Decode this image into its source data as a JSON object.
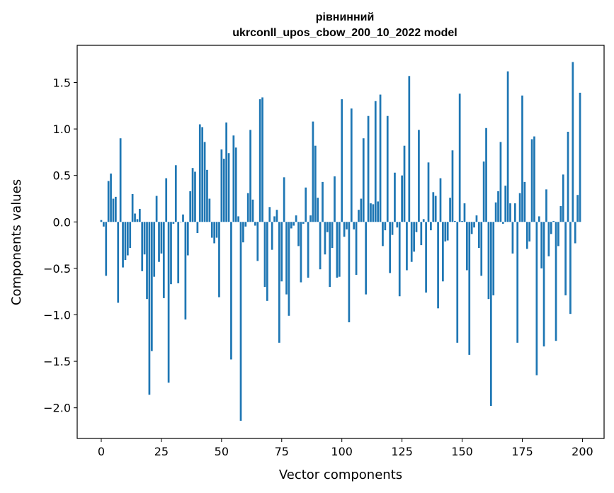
{
  "chart_data": {
    "type": "bar",
    "title": "рівнинний",
    "subtitle": "ukrconll_upos_cbow_200_10_2022 model",
    "xlabel": "Vector components",
    "ylabel": "Components values",
    "xlim": [
      -10,
      209
    ],
    "ylim": [
      -2.33,
      1.9
    ],
    "xticks": [
      0,
      25,
      50,
      75,
      100,
      125,
      150,
      175,
      200
    ],
    "yticks": [
      -2.0,
      -1.5,
      -1.0,
      -0.5,
      0.0,
      0.5,
      1.0,
      1.5
    ],
    "ytick_labels": [
      "−2.0",
      "−1.5",
      "−1.0",
      "−0.5",
      "0.0",
      "0.5",
      "1.0",
      "1.5"
    ],
    "bar_color": "#1f77b4",
    "grid": false,
    "values": [
      0.02,
      -0.05,
      -0.58,
      0.44,
      0.52,
      0.25,
      0.27,
      -0.87,
      0.9,
      -0.49,
      -0.41,
      -0.36,
      -0.28,
      0.3,
      0.09,
      0.03,
      0.14,
      -0.53,
      -0.35,
      -0.83,
      -1.86,
      -1.39,
      -0.59,
      0.28,
      -0.43,
      -0.34,
      -0.82,
      0.47,
      -1.73,
      -0.67,
      -0.02,
      0.61,
      -0.66,
      0.0,
      0.08,
      -1.05,
      -0.36,
      0.33,
      0.58,
      0.54,
      -0.12,
      1.05,
      1.02,
      0.86,
      0.56,
      0.25,
      -0.17,
      -0.23,
      -0.17,
      -0.81,
      0.78,
      0.68,
      1.07,
      0.74,
      -1.48,
      0.93,
      0.8,
      0.06,
      -2.14,
      -0.22,
      -0.05,
      0.31,
      0.99,
      0.24,
      -0.04,
      -0.42,
      1.32,
      1.34,
      -0.7,
      -0.85,
      0.16,
      -0.3,
      0.06,
      0.13,
      -1.3,
      -0.64,
      0.48,
      -0.78,
      -1.01,
      -0.07,
      -0.04,
      0.07,
      -0.26,
      -0.65,
      -0.02,
      0.37,
      -0.6,
      0.07,
      1.08,
      0.82,
      0.26,
      -0.51,
      0.43,
      -0.35,
      -0.11,
      -0.7,
      -0.28,
      0.49,
      -0.6,
      -0.59,
      1.32,
      -0.16,
      -0.08,
      -1.08,
      1.22,
      -0.08,
      -0.57,
      0.13,
      0.25,
      0.9,
      -0.78,
      1.14,
      0.2,
      0.19,
      1.3,
      0.22,
      1.37,
      -0.26,
      -0.09,
      1.14,
      -0.55,
      -0.14,
      0.53,
      -0.06,
      -0.8,
      0.5,
      0.82,
      -0.52,
      1.57,
      -0.43,
      -0.32,
      -0.11,
      0.99,
      -0.25,
      0.03,
      -0.76,
      0.64,
      -0.09,
      0.32,
      0.28,
      -0.93,
      0.47,
      -0.64,
      -0.21,
      -0.2,
      0.26,
      0.77,
      0.01,
      -1.3,
      1.38,
      0.01,
      0.2,
      -0.52,
      -1.43,
      -0.13,
      -0.06,
      0.07,
      -0.28,
      -0.58,
      0.65,
      1.01,
      -0.83,
      -1.98,
      -0.79,
      0.21,
      0.33,
      0.86,
      -0.02,
      0.39,
      1.62,
      0.2,
      -0.34,
      0.2,
      -1.3,
      0.31,
      1.36,
      0.43,
      -0.29,
      -0.21,
      0.89,
      0.92,
      -1.65,
      0.06,
      -0.5,
      -1.34,
      0.35,
      -0.37,
      -0.13,
      0.01,
      -1.28,
      -0.26,
      0.17,
      0.51,
      -0.79,
      0.97,
      -0.99,
      1.72,
      -0.23,
      0.29,
      1.39
    ]
  }
}
